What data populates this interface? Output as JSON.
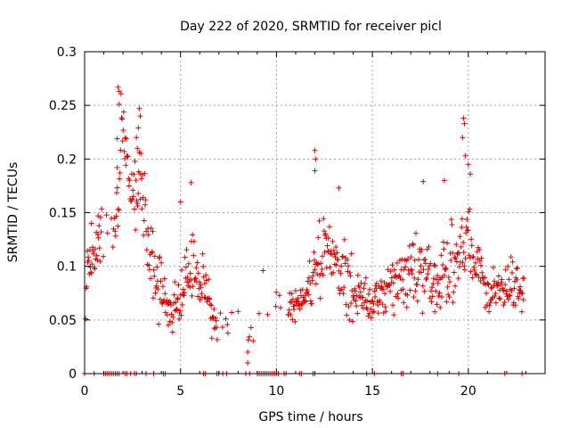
{
  "chart_data": {
    "type": "scatter",
    "title": "Day 222 of 2020, SRMTID for receiver picl",
    "xlabel": "GPS time / hours",
    "ylabel": "SRMTID / TECUs",
    "xlim": [
      0,
      24.0
    ],
    "ylim": [
      0,
      0.3
    ],
    "x_ticks": [
      0,
      5,
      10,
      15,
      20
    ],
    "y_ticks": [
      0,
      0.05,
      0.1,
      0.15,
      0.2,
      0.25,
      0.3
    ],
    "x_tick_labels": [
      "0",
      "5",
      "10",
      "15",
      "20"
    ],
    "y_tick_labels": [
      "0",
      "0.05",
      "0.1",
      "0.15",
      "0.2",
      "0.25",
      "0.3"
    ],
    "grid": true,
    "marker": "plus",
    "marker_color": "#e00000",
    "series_envelope": [
      {
        "x": 0.0,
        "center": 0.0,
        "spread": 0.0
      },
      {
        "x": 0.1,
        "center": 0.095,
        "spread": 0.04
      },
      {
        "x": 0.3,
        "center": 0.11,
        "spread": 0.035
      },
      {
        "x": 0.6,
        "center": 0.115,
        "spread": 0.035
      },
      {
        "x": 1.8,
        "center": 0.15,
        "spread": 0.06
      },
      {
        "x": 1.9,
        "center": 0.24,
        "spread": 0.03
      },
      {
        "x": 2.5,
        "center": 0.16,
        "spread": 0.05
      },
      {
        "x": 2.9,
        "center": 0.2,
        "spread": 0.05
      },
      {
        "x": 3.3,
        "center": 0.12,
        "spread": 0.05
      },
      {
        "x": 3.8,
        "center": 0.08,
        "spread": 0.04
      },
      {
        "x": 4.5,
        "center": 0.06,
        "spread": 0.03
      },
      {
        "x": 5.0,
        "center": 0.07,
        "spread": 0.035
      },
      {
        "x": 5.6,
        "center": 0.1,
        "spread": 0.05
      },
      {
        "x": 6.3,
        "center": 0.08,
        "spread": 0.04
      },
      {
        "x": 6.8,
        "center": 0.04,
        "spread": 0.02
      },
      {
        "x": 7.3,
        "center": 0.055,
        "spread": 0.025
      },
      {
        "x": 8.1,
        "center": 0.055,
        "spread": 0.02
      },
      {
        "x": 8.5,
        "center": 0.03,
        "spread": 0.015
      },
      {
        "x": 9.3,
        "center": 0.06,
        "spread": 0.035
      },
      {
        "x": 10.0,
        "center": 0.065,
        "spread": 0.015
      },
      {
        "x": 10.6,
        "center": 0.06,
        "spread": 0.025
      },
      {
        "x": 11.5,
        "center": 0.07,
        "spread": 0.025
      },
      {
        "x": 12.0,
        "center": 0.09,
        "spread": 0.04
      },
      {
        "x": 12.4,
        "center": 0.12,
        "spread": 0.06
      },
      {
        "x": 13.0,
        "center": 0.1,
        "spread": 0.04
      },
      {
        "x": 13.6,
        "center": 0.09,
        "spread": 0.05
      },
      {
        "x": 14.2,
        "center": 0.07,
        "spread": 0.035
      },
      {
        "x": 15.0,
        "center": 0.07,
        "spread": 0.03
      },
      {
        "x": 15.8,
        "center": 0.075,
        "spread": 0.03
      },
      {
        "x": 16.4,
        "center": 0.09,
        "spread": 0.05
      },
      {
        "x": 17.2,
        "center": 0.09,
        "spread": 0.05
      },
      {
        "x": 17.7,
        "center": 0.1,
        "spread": 0.05
      },
      {
        "x": 18.3,
        "center": 0.08,
        "spread": 0.04
      },
      {
        "x": 19.0,
        "center": 0.09,
        "spread": 0.05
      },
      {
        "x": 19.8,
        "center": 0.13,
        "spread": 0.07
      },
      {
        "x": 20.3,
        "center": 0.11,
        "spread": 0.05
      },
      {
        "x": 21.0,
        "center": 0.08,
        "spread": 0.04
      },
      {
        "x": 21.6,
        "center": 0.075,
        "spread": 0.035
      },
      {
        "x": 22.2,
        "center": 0.085,
        "spread": 0.04
      },
      {
        "x": 22.8,
        "center": 0.075,
        "spread": 0.03
      }
    ],
    "peaks": [
      {
        "x": 1.75,
        "y": 0.267
      },
      {
        "x": 1.8,
        "y": 0.263
      },
      {
        "x": 1.8,
        "y": 0.251
      },
      {
        "x": 1.7,
        "y": 0.219
      },
      {
        "x": 1.7,
        "y": 0.192
      },
      {
        "x": 2.85,
        "y": 0.247
      },
      {
        "x": 2.9,
        "y": 0.24
      },
      {
        "x": 2.8,
        "y": 0.229
      },
      {
        "x": 2.7,
        "y": 0.22
      },
      {
        "x": 2.75,
        "y": 0.21
      },
      {
        "x": 12.0,
        "y": 0.208
      },
      {
        "x": 12.05,
        "y": 0.2
      },
      {
        "x": 12.0,
        "y": 0.189
      },
      {
        "x": 19.75,
        "y": 0.238
      },
      {
        "x": 19.8,
        "y": 0.233
      },
      {
        "x": 19.7,
        "y": 0.22
      },
      {
        "x": 19.85,
        "y": 0.203
      },
      {
        "x": 20.0,
        "y": 0.195
      },
      {
        "x": 20.1,
        "y": 0.186
      },
      {
        "x": 5.55,
        "y": 0.178
      },
      {
        "x": 5.0,
        "y": 0.16
      },
      {
        "x": 13.25,
        "y": 0.173
      },
      {
        "x": 17.65,
        "y": 0.179
      },
      {
        "x": 18.75,
        "y": 0.18
      },
      {
        "x": 0.7,
        "y": 0.147
      },
      {
        "x": 0.35,
        "y": 0.14
      },
      {
        "x": 9.3,
        "y": 0.096
      },
      {
        "x": 8.5,
        "y": 0.01
      },
      {
        "x": 8.5,
        "y": 0.02
      }
    ],
    "zero_points_x": [
      0.0,
      0.5,
      1.0,
      1.1,
      1.2,
      1.3,
      1.4,
      1.5,
      1.6,
      1.7,
      1.8,
      2.1,
      2.2,
      2.4,
      2.6,
      2.7,
      3.2,
      3.6,
      4.1,
      4.2,
      6.2,
      6.3,
      6.9,
      7.0,
      7.2,
      7.4,
      8.4,
      8.6,
      9.0,
      9.1,
      9.2,
      9.3,
      9.4,
      9.5,
      9.6,
      9.7,
      9.8,
      9.9,
      10.0,
      10.1,
      10.4,
      10.5,
      11.2,
      11.3,
      11.9,
      12.0,
      14.7,
      15.1,
      16.5,
      16.6,
      18.4,
      19.5,
      21.9,
      22.8
    ]
  }
}
